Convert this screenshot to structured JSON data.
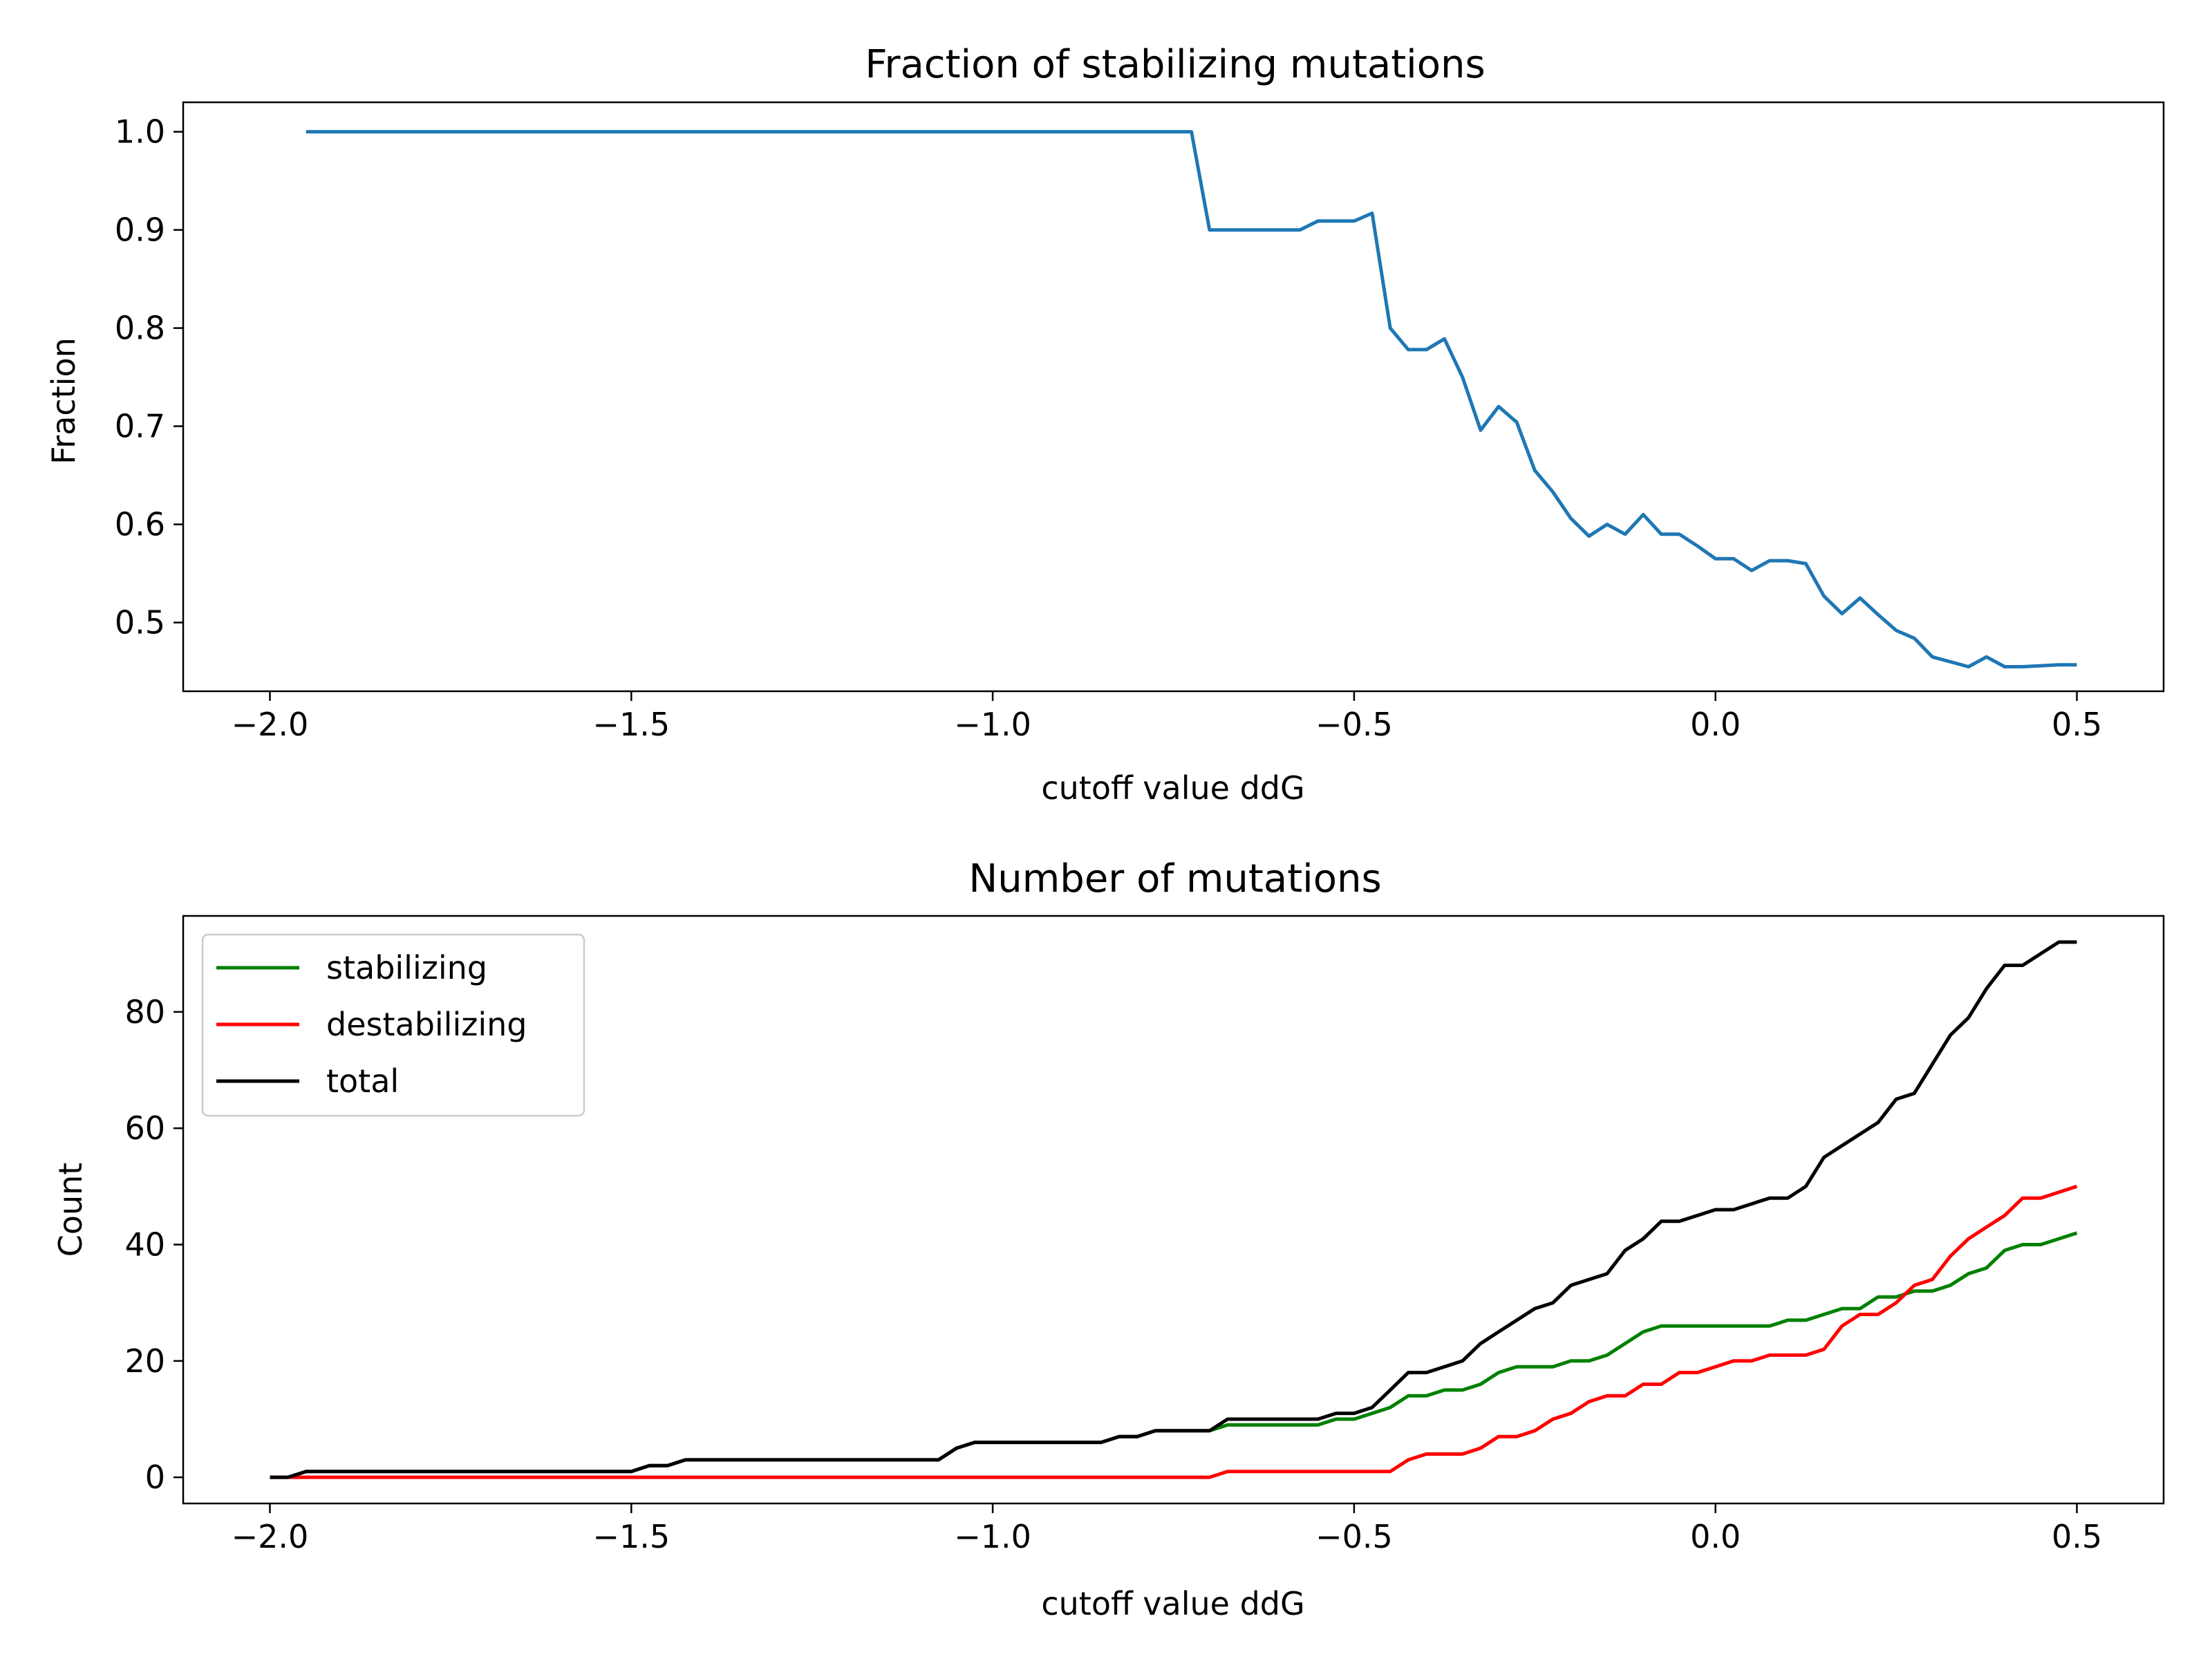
{
  "chart_data": [
    {
      "type": "line",
      "title": "Fraction of stabilizing mutations",
      "xlabel": "cutoff value ddG",
      "ylabel": "Fraction",
      "xlim": [
        -2.12,
        0.62
      ],
      "ylim": [
        0.43,
        1.03
      ],
      "xticks": [
        "−2.0",
        "−1.5",
        "−1.0",
        "−0.5",
        "0.0",
        "0.5"
      ],
      "xtick_values": [
        -2.0,
        -1.5,
        -1.0,
        -0.5,
        0.0,
        0.5
      ],
      "yticks": [
        "0.5",
        "0.6",
        "0.7",
        "0.8",
        "0.9",
        "1.0"
      ],
      "ytick_values": [
        0.5,
        0.6,
        0.7,
        0.8,
        0.9,
        1.0
      ],
      "grid": false,
      "legend": null,
      "series": [
        {
          "color": "#1f77b4",
          "x": [
            -1.95,
            -0.725,
            -0.7,
            -0.675,
            -0.65,
            -0.625,
            -0.6,
            -0.575,
            -0.55,
            -0.525,
            -0.5,
            -0.475,
            -0.45,
            -0.425,
            -0.4,
            -0.375,
            -0.35,
            -0.325,
            -0.3,
            -0.275,
            -0.25,
            -0.225,
            -0.2,
            -0.175,
            -0.15,
            -0.125,
            -0.1,
            -0.075,
            -0.05,
            -0.025,
            0.0,
            0.025,
            0.05,
            0.075,
            0.1,
            0.125,
            0.15,
            0.175,
            0.2,
            0.225,
            0.25,
            0.275,
            0.3,
            0.325,
            0.35,
            0.375,
            0.4,
            0.425,
            0.45,
            0.475,
            0.5
          ],
          "y": [
            1.0,
            1.0,
            0.9,
            0.9,
            0.9,
            0.9,
            0.9,
            0.9,
            0.909,
            0.909,
            0.909,
            0.917,
            0.8,
            0.778,
            0.778,
            0.789,
            0.75,
            0.696,
            0.72,
            0.704,
            0.655,
            0.633,
            0.606,
            0.588,
            0.6,
            0.59,
            0.61,
            0.59,
            0.59,
            0.578,
            0.565,
            0.565,
            0.553,
            0.563,
            0.563,
            0.56,
            0.527,
            0.509,
            0.525,
            0.508,
            0.492,
            0.484,
            0.465,
            0.46,
            0.455,
            0.465,
            0.455,
            0.455,
            0.456,
            0.457,
            0.457
          ]
        }
      ]
    },
    {
      "type": "line",
      "title": "Number of mutations",
      "xlabel": "cutoff value ddG",
      "ylabel": "Count",
      "xlim": [
        -2.12,
        0.62
      ],
      "ylim": [
        -4.5,
        96.5
      ],
      "xticks": [
        "−2.0",
        "−1.5",
        "−1.0",
        "−0.5",
        "0.0",
        "0.5"
      ],
      "xtick_values": [
        -2.0,
        -1.5,
        -1.0,
        -0.5,
        0.0,
        0.5
      ],
      "yticks": [
        "0",
        "20",
        "40",
        "60",
        "80"
      ],
      "ytick_values": [
        0,
        20,
        40,
        60,
        80
      ],
      "grid": false,
      "legend": "top-left",
      "series": [
        {
          "name": "stabilizing",
          "color": "#008000",
          "x": [
            -2.0,
            -1.975,
            -1.95,
            -1.5,
            -1.475,
            -1.45,
            -1.425,
            -1.075,
            -1.05,
            -1.025,
            -0.85,
            -0.825,
            -0.8,
            -0.775,
            -0.7,
            -0.675,
            -0.55,
            -0.525,
            -0.5,
            -0.475,
            -0.45,
            -0.425,
            -0.4,
            -0.375,
            -0.35,
            -0.325,
            -0.3,
            -0.275,
            -0.25,
            -0.225,
            -0.2,
            -0.175,
            -0.15,
            -0.125,
            -0.1,
            -0.075,
            -0.05,
            -0.025,
            0.0,
            0.025,
            0.05,
            0.075,
            0.1,
            0.125,
            0.15,
            0.175,
            0.2,
            0.225,
            0.25,
            0.275,
            0.3,
            0.325,
            0.35,
            0.375,
            0.4,
            0.425,
            0.45,
            0.475,
            0.5
          ],
          "y": [
            0,
            0,
            1,
            1,
            2,
            2,
            3,
            3,
            5,
            6,
            6,
            7,
            7,
            8,
            8,
            9,
            9,
            10,
            10,
            11,
            12,
            14,
            14,
            15,
            15,
            16,
            18,
            19,
            19,
            19,
            20,
            20,
            21,
            23,
            25,
            26,
            26,
            26,
            26,
            26,
            26,
            26,
            27,
            27,
            28,
            29,
            29,
            31,
            31,
            32,
            32,
            33,
            35,
            36,
            39,
            40,
            40,
            41,
            42
          ]
        },
        {
          "name": "destabilizing",
          "color": "#ff0000",
          "x": [
            -2.0,
            -0.7,
            -0.675,
            -0.45,
            -0.425,
            -0.4,
            -0.375,
            -0.35,
            -0.325,
            -0.3,
            -0.275,
            -0.25,
            -0.225,
            -0.2,
            -0.175,
            -0.15,
            -0.125,
            -0.1,
            -0.075,
            -0.05,
            -0.025,
            0.0,
            0.025,
            0.05,
            0.075,
            0.1,
            0.125,
            0.15,
            0.175,
            0.2,
            0.225,
            0.25,
            0.275,
            0.3,
            0.325,
            0.35,
            0.375,
            0.4,
            0.425,
            0.45,
            0.475,
            0.5
          ],
          "y": [
            0,
            0,
            1,
            1,
            3,
            4,
            4,
            4,
            5,
            7,
            7,
            8,
            10,
            11,
            13,
            14,
            14,
            16,
            16,
            18,
            18,
            19,
            20,
            20,
            21,
            21,
            21,
            22,
            26,
            28,
            28,
            30,
            33,
            34,
            38,
            41,
            43,
            45,
            48,
            48,
            49,
            50
          ]
        },
        {
          "name": "total",
          "color": "#000000",
          "x": [
            -2.0,
            -1.975,
            -1.95,
            -1.5,
            -1.475,
            -1.45,
            -1.425,
            -1.075,
            -1.05,
            -1.025,
            -0.85,
            -0.825,
            -0.8,
            -0.775,
            -0.7,
            -0.675,
            -0.55,
            -0.525,
            -0.5,
            -0.475,
            -0.45,
            -0.425,
            -0.4,
            -0.375,
            -0.35,
            -0.325,
            -0.3,
            -0.275,
            -0.25,
            -0.225,
            -0.2,
            -0.175,
            -0.15,
            -0.125,
            -0.1,
            -0.075,
            -0.05,
            -0.025,
            0.0,
            0.025,
            0.05,
            0.075,
            0.1,
            0.125,
            0.15,
            0.175,
            0.2,
            0.225,
            0.25,
            0.275,
            0.3,
            0.325,
            0.35,
            0.375,
            0.4,
            0.425,
            0.45,
            0.475,
            0.5
          ],
          "y": [
            0,
            0,
            1,
            1,
            2,
            2,
            3,
            3,
            5,
            6,
            6,
            7,
            7,
            8,
            8,
            10,
            10,
            11,
            11,
            12,
            15,
            18,
            18,
            19,
            20,
            23,
            25,
            27,
            29,
            30,
            33,
            34,
            35,
            39,
            41,
            44,
            44,
            45,
            46,
            46,
            47,
            48,
            48,
            50,
            55,
            57,
            59,
            61,
            65,
            66,
            71,
            76,
            79,
            84,
            88,
            88,
            90,
            92,
            92
          ]
        }
      ]
    }
  ]
}
